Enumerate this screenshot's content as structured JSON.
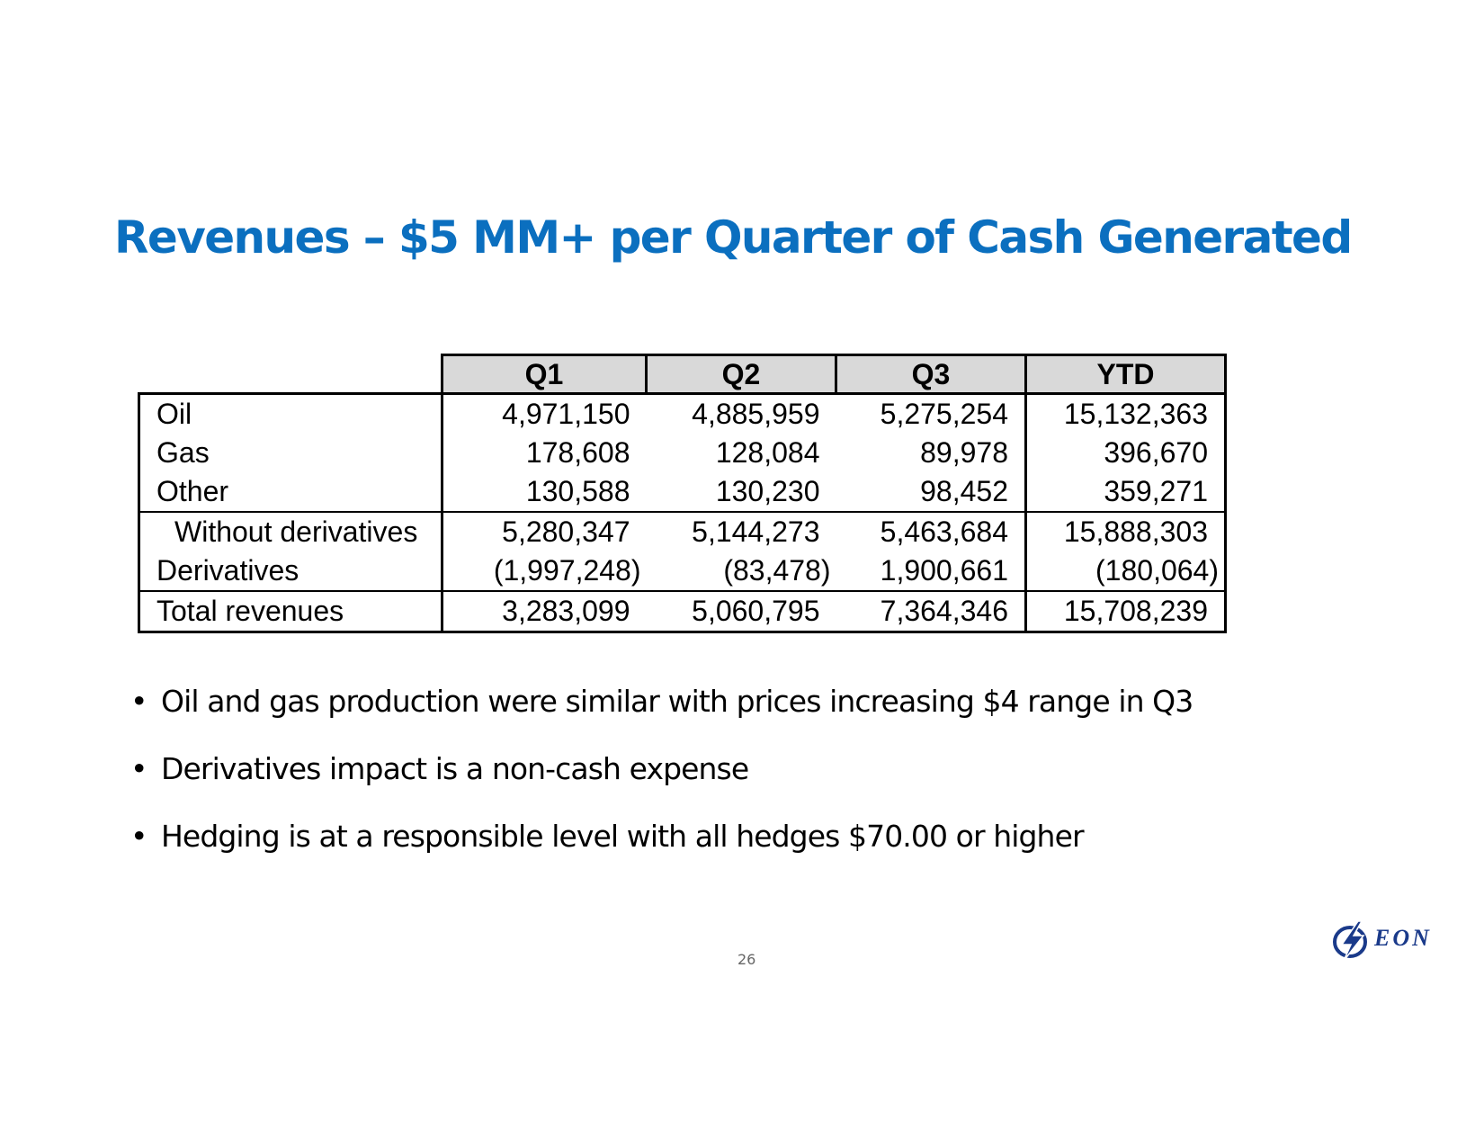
{
  "title": "Revenues – $5 MM+ per Quarter of Cash Generated",
  "table": {
    "headers": [
      "Q1",
      "Q2",
      "Q3",
      "YTD"
    ],
    "rows": [
      {
        "label": "Oil",
        "values": [
          "4,971,150",
          "4,885,959",
          "5,275,254",
          "15,132,363"
        ]
      },
      {
        "label": "Gas",
        "values": [
          "178,608",
          "128,084",
          "89,978",
          "396,670"
        ]
      },
      {
        "label": "Other",
        "values": [
          "130,588",
          "130,230",
          "98,452",
          "359,271"
        ]
      },
      {
        "label": "Without derivatives",
        "values": [
          "5,280,347",
          "5,144,273",
          "5,463,684",
          "15,888,303"
        ]
      },
      {
        "label": "Derivatives",
        "values": [
          "(1,997,248)",
          "(83,478)",
          "1,900,661",
          "(180,064)"
        ]
      },
      {
        "label": "Total revenues",
        "values": [
          "3,283,099",
          "5,060,795",
          "7,364,346",
          "15,708,239"
        ]
      }
    ]
  },
  "bullets": [
    "Oil and gas production were similar with prices increasing $4 range in Q3",
    "Derivatives impact is a non-cash expense",
    "Hedging is at a responsible level with all hedges $70.00 or higher"
  ],
  "page_number": "26",
  "logo": {
    "text": "EON",
    "icon": "lightning-bolt-icon",
    "color": "#1a3a8a"
  },
  "colors": {
    "title": "#0b6fbf",
    "header_fill": "#d9d9d9"
  }
}
